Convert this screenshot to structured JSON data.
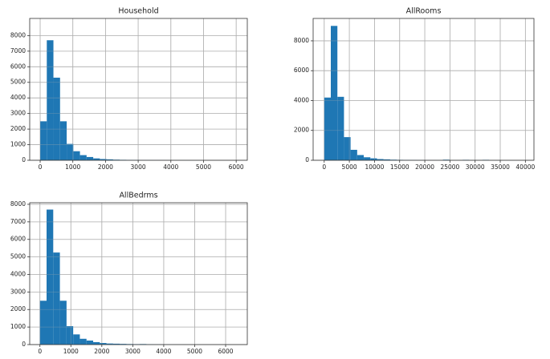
{
  "chart_data": [
    {
      "type": "histogram",
      "title": "Household",
      "color": "#1f77b4",
      "grid": true,
      "bins": [
        0,
        203,
        406,
        609,
        812,
        1015,
        1218,
        1421,
        1624,
        1827,
        2030,
        2233,
        2436,
        2639,
        2842,
        3045,
        3248,
        3451,
        3654,
        3857,
        4060,
        4263,
        4466,
        4669,
        4872,
        5075,
        5278,
        5481,
        5684,
        5887,
        6090
      ],
      "counts": [
        2500,
        7700,
        5300,
        2500,
        1050,
        580,
        330,
        210,
        120,
        80,
        60,
        40,
        30,
        25,
        20,
        15,
        12,
        10,
        8,
        6,
        5,
        4,
        3,
        3,
        2,
        2,
        2,
        1,
        1,
        1
      ],
      "xlim": [
        -320,
        6340
      ],
      "ylim": [
        0,
        9100
      ],
      "xticks": [
        0,
        1000,
        2000,
        3000,
        4000,
        5000,
        6000
      ],
      "yticks": [
        0,
        1000,
        2000,
        3000,
        4000,
        5000,
        6000,
        7000,
        8000
      ]
    },
    {
      "type": "histogram",
      "title": "AllRooms",
      "color": "#1f77b4",
      "grid": true,
      "bins": [
        0,
        1311,
        2622,
        3933,
        5244,
        6555,
        7866,
        9177,
        10488,
        11799,
        13110,
        14421,
        15732,
        17043,
        18354,
        19665,
        20976,
        22287,
        23598,
        24909,
        26220,
        27531,
        28842,
        30153,
        31464,
        32775,
        34086,
        35397,
        36708,
        38019,
        39330
      ],
      "counts": [
        4200,
        9000,
        4250,
        1550,
        700,
        350,
        200,
        130,
        80,
        60,
        40,
        30,
        25,
        20,
        15,
        10,
        10,
        5,
        40,
        5,
        5,
        30,
        5,
        5,
        30,
        3,
        3,
        3,
        3,
        2
      ],
      "xlim": [
        -2200,
        41700
      ],
      "ylim": [
        0,
        9500
      ],
      "xticks": [
        0,
        5000,
        10000,
        15000,
        20000,
        25000,
        30000,
        35000,
        40000
      ],
      "yticks": [
        0,
        2000,
        4000,
        6000,
        8000
      ]
    },
    {
      "type": "histogram",
      "title": "AllBedrms",
      "color": "#1f77b4",
      "grid": true,
      "bins": [
        0,
        215,
        430,
        645,
        860,
        1075,
        1290,
        1505,
        1720,
        1935,
        2150,
        2365,
        2580,
        2795,
        3010,
        3225,
        3440,
        3655,
        3870,
        4085,
        4300,
        4515,
        4730,
        4945,
        5160,
        5375,
        5590,
        5805,
        6020,
        6235,
        6450
      ],
      "counts": [
        2500,
        7700,
        5250,
        2500,
        1050,
        580,
        330,
        230,
        140,
        90,
        60,
        50,
        40,
        30,
        25,
        30,
        20,
        10,
        8,
        6,
        5,
        4,
        3,
        3,
        2,
        2,
        2,
        1,
        1,
        1
      ],
      "xlim": [
        -330,
        6700
      ],
      "ylim": [
        0,
        8090
      ],
      "xticks": [
        0,
        1000,
        2000,
        3000,
        4000,
        5000,
        6000
      ],
      "yticks": [
        0,
        1000,
        2000,
        3000,
        4000,
        5000,
        6000,
        7000,
        8000
      ]
    }
  ]
}
